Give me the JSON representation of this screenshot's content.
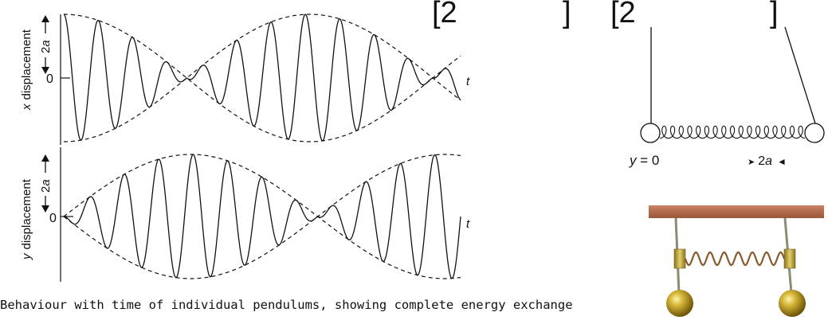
{
  "graphs": {
    "x_panel": {
      "ylabel_var": "x",
      "ylabel_text": "displacement",
      "amplitude_label": {
        "num": "2",
        "var": "a"
      },
      "zero_label": "0",
      "time_label": "t"
    },
    "y_panel": {
      "ylabel_var": "y",
      "ylabel_text": "displacement",
      "amplitude_label": {
        "num": "2",
        "var": "a"
      },
      "zero_label": "0",
      "time_label": "t"
    }
  },
  "pendulum_diagram": {
    "bracket_left": "[2",
    "bracket_left_close": "]",
    "bracket_right": "[2",
    "bracket_right_close": "]",
    "left_bob_label": {
      "var": "y",
      "rest": " = 0"
    },
    "right_bob_label": {
      "arrow_in": "➤",
      "num": "2",
      "var": "a",
      "arrow_out": "◄"
    }
  },
  "caption": "Behaviour with time of individual pendulums, showing complete energy exchange",
  "colors": {
    "wood": "#b46e4f",
    "brass": "#b8a23a",
    "spring": "#8a5a2c",
    "bob": "#a88a1e"
  }
}
